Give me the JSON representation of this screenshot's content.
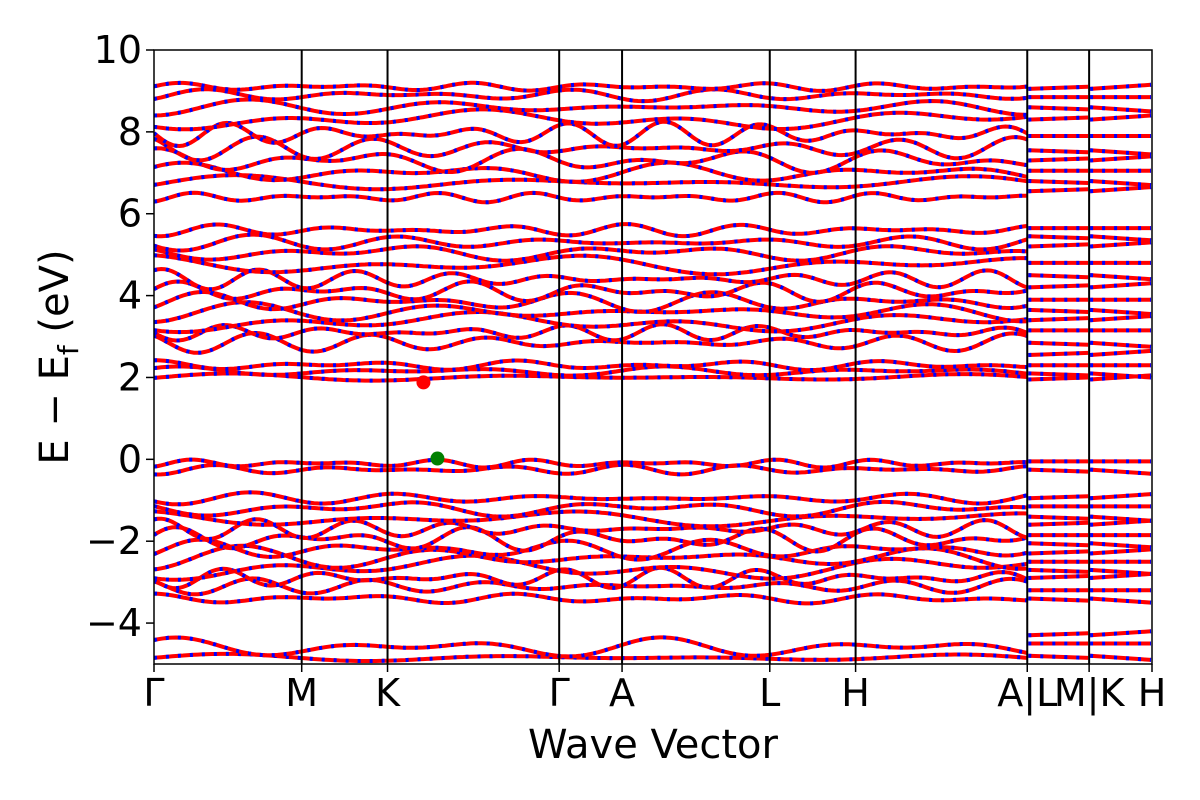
{
  "chart_data": {
    "type": "line",
    "title": "",
    "xlabel": "Wave Vector",
    "ylabel_main": "E − E",
    "ylabel_sub": "f",
    "ylabel_unit": " (eV)",
    "ylim": [
      -5,
      10
    ],
    "yticks": [
      10,
      8,
      6,
      4,
      2,
      0,
      -2,
      -4
    ],
    "ytick_labels": [
      "10",
      "8",
      "6",
      "4",
      "2",
      "0",
      "−2",
      "−4"
    ],
    "xlim": [
      0,
      1
    ],
    "kpoints": [
      {
        "label": "Γ",
        "x": 0.0
      },
      {
        "label": "M",
        "x": 0.148
      },
      {
        "label": "K",
        "x": 0.234
      },
      {
        "label": "Γ",
        "x": 0.406
      },
      {
        "label": "A",
        "x": 0.469
      },
      {
        "label": "L",
        "x": 0.617
      },
      {
        "label": "H",
        "x": 0.703
      },
      {
        "label": "A|L",
        "x": 0.875
      },
      {
        "label": "M|K",
        "x": 0.937
      },
      {
        "label": "H",
        "x": 1.0
      }
    ],
    "series_style": {
      "line_color": "#ff0000",
      "dash_color": "#0000ff"
    },
    "bands": [
      {
        "segment": "Γ-M-K-Γ-A-L-H-A",
        "e0": -4.85,
        "amp": 0.1
      },
      {
        "segment": "Γ-M-K-Γ-A-L-H-A",
        "e0": -4.6,
        "amp": 0.25
      },
      {
        "segment": "Γ-M-K-Γ-A-L-H-A",
        "e0": -3.4,
        "amp": 0.12
      },
      {
        "segment": "Γ-M-K-Γ-A-L-H-A",
        "e0": -3.1,
        "amp": 0.2
      },
      {
        "segment": "Γ-M-K-Γ-A-L-H-A",
        "e0": -2.9,
        "amp": 0.25
      },
      {
        "segment": "Γ-M-K-Γ-A-L-H-A",
        "e0": -2.65,
        "amp": 0.3
      },
      {
        "segment": "Γ-M-K-Γ-A-L-H-A",
        "e0": -2.4,
        "amp": 0.3
      },
      {
        "segment": "Γ-M-K-Γ-A-L-H-A",
        "e0": -2.2,
        "amp": 0.25
      },
      {
        "segment": "Γ-M-K-Γ-A-L-H-A",
        "e0": -1.95,
        "amp": 0.3
      },
      {
        "segment": "Γ-M-K-Γ-A-L-H-A",
        "e0": -1.7,
        "amp": 0.25
      },
      {
        "segment": "Γ-M-K-Γ-A-L-H-A",
        "e0": -1.45,
        "amp": 0.2
      },
      {
        "segment": "Γ-M-K-Γ-A-L-H-A",
        "e0": -1.2,
        "amp": 0.2
      },
      {
        "segment": "Γ-M-K-Γ-A-L-H-A",
        "e0": -0.95,
        "amp": 0.15
      },
      {
        "segment": "Γ-M-K-Γ-A-L-H-A",
        "e0": -0.25,
        "amp": 0.12
      },
      {
        "segment": "Γ-M-K-Γ-A-L-H-A",
        "e0": -0.1,
        "amp": 0.1
      },
      {
        "segment": "Γ-M-K-Γ-A-L-H-A",
        "e0": 2.0,
        "amp": 0.1
      },
      {
        "segment": "Γ-M-K-Γ-A-L-H-A",
        "e0": 2.15,
        "amp": 0.12
      },
      {
        "segment": "Γ-M-K-Γ-A-L-H-A",
        "e0": 2.3,
        "amp": 0.12
      },
      {
        "segment": "Γ-M-K-Γ-A-L-H-A",
        "e0": 2.85,
        "amp": 0.25
      },
      {
        "segment": "Γ-M-K-Γ-A-L-H-A",
        "e0": 3.1,
        "amp": 0.2
      },
      {
        "segment": "Γ-M-K-Γ-A-L-H-A",
        "e0": 3.35,
        "amp": 0.25
      },
      {
        "segment": "Γ-M-K-Γ-A-L-H-A",
        "e0": 3.6,
        "amp": 0.25
      },
      {
        "segment": "Γ-M-K-Γ-A-L-H-A",
        "e0": 3.85,
        "amp": 0.25
      },
      {
        "segment": "Γ-M-K-Γ-A-L-H-A",
        "e0": 4.1,
        "amp": 0.25
      },
      {
        "segment": "Γ-M-K-Γ-A-L-H-A",
        "e0": 4.4,
        "amp": 0.25
      },
      {
        "segment": "Γ-M-K-Γ-A-L-H-A",
        "e0": 4.75,
        "amp": 0.25
      },
      {
        "segment": "Γ-M-K-Γ-A-L-H-A",
        "e0": 5.05,
        "amp": 0.2
      },
      {
        "segment": "Γ-M-K-Γ-A-L-H-A",
        "e0": 5.3,
        "amp": 0.2
      },
      {
        "segment": "Γ-M-K-Γ-A-L-H-A",
        "e0": 5.6,
        "amp": 0.15
      },
      {
        "segment": "Γ-M-K-Γ-A-L-H-A",
        "e0": 6.4,
        "amp": 0.12
      },
      {
        "segment": "Γ-M-K-Γ-A-L-H-A",
        "e0": 6.75,
        "amp": 0.2
      },
      {
        "segment": "Γ-M-K-Γ-A-L-H-A",
        "e0": 7.0,
        "amp": 0.25
      },
      {
        "segment": "Γ-M-K-Γ-A-L-H-A",
        "e0": 7.3,
        "amp": 0.3
      },
      {
        "segment": "Γ-M-K-Γ-A-L-H-A",
        "e0": 7.6,
        "amp": 0.3
      },
      {
        "segment": "Γ-M-K-Γ-A-L-H-A",
        "e0": 7.95,
        "amp": 0.3
      },
      {
        "segment": "Γ-M-K-Γ-A-L-H-A",
        "e0": 8.3,
        "amp": 0.25
      },
      {
        "segment": "Γ-M-K-Γ-A-L-H-A",
        "e0": 8.6,
        "amp": 0.2
      },
      {
        "segment": "Γ-M-K-Γ-A-L-H-A",
        "e0": 8.9,
        "amp": 0.15
      },
      {
        "segment": "Γ-M-K-Γ-A-L-H-A",
        "e0": 9.1,
        "amp": 0.1
      }
    ],
    "right_segment_levels": [
      -4.8,
      -4.5,
      -4.3,
      -3.4,
      -3.2,
      -2.9,
      -2.7,
      -2.5,
      -2.3,
      -2.05,
      -1.85,
      -1.6,
      -1.4,
      -1.15,
      -0.95,
      -0.25,
      -0.05,
      1.95,
      2.1,
      2.3,
      2.55,
      2.85,
      3.15,
      3.4,
      3.65,
      3.9,
      4.2,
      4.5,
      4.8,
      5.2,
      5.45,
      5.65,
      6.55,
      6.8,
      7.05,
      7.3,
      7.55,
      7.9,
      8.3,
      8.6,
      8.85,
      9.05
    ],
    "markers": [
      {
        "name": "cbm",
        "x": 0.27,
        "y": 1.88,
        "color": "#ff0000"
      },
      {
        "name": "vbm",
        "x": 0.284,
        "y": 0.02,
        "color": "#008000"
      }
    ]
  }
}
